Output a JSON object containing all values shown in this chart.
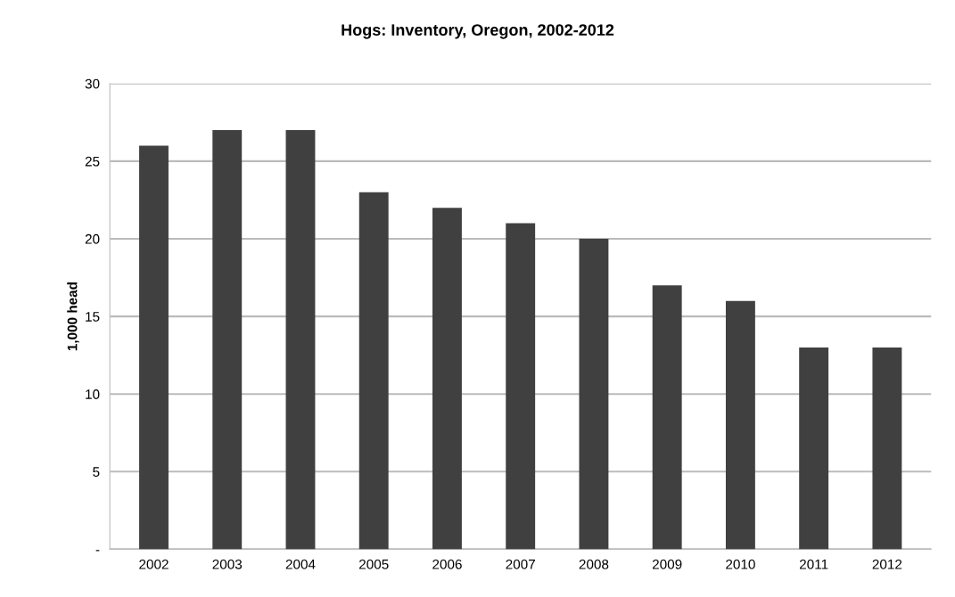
{
  "chart_data": {
    "type": "bar",
    "title": "Hogs: Inventory, Oregon, 2002-2012",
    "ylabel": "1,000 head",
    "categories": [
      "2002",
      "2003",
      "2004",
      "2005",
      "2006",
      "2007",
      "2008",
      "2009",
      "2010",
      "2011",
      "2012"
    ],
    "values": [
      26,
      27,
      27,
      23,
      22,
      21,
      20,
      17,
      16,
      13,
      13
    ],
    "color": "#404040",
    "ylim": [
      0,
      30
    ],
    "yticks": [
      {
        "value": 0,
        "label": "-"
      },
      5,
      10,
      15,
      20,
      25,
      30
    ],
    "grid": "y",
    "legend": false
  }
}
